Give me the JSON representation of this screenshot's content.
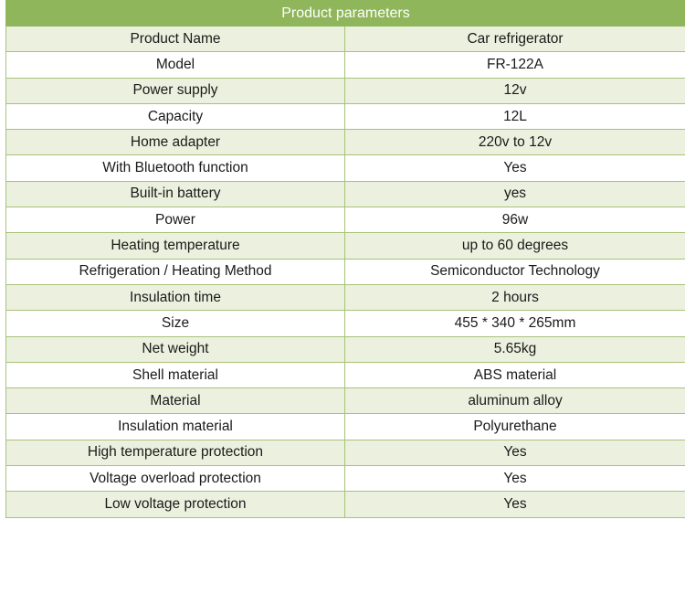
{
  "table": {
    "title": "Product parameters",
    "rows": [
      {
        "label": "Product Name",
        "value": "Car refrigerator"
      },
      {
        "label": "Model",
        "value": "FR-122A"
      },
      {
        "label": "Power supply",
        "value": "12v"
      },
      {
        "label": "Capacity",
        "value": "12L"
      },
      {
        "label": "Home adapter",
        "value": "220v to 12v"
      },
      {
        "label": "With Bluetooth function",
        "value": "Yes"
      },
      {
        "label": "Built-in battery",
        "value": "yes"
      },
      {
        "label": "Power",
        "value": "96w"
      },
      {
        "label": "Heating temperature",
        "value": "up to 60 degrees"
      },
      {
        "label": "Refrigeration / Heating Method",
        "value": "Semiconductor Technology"
      },
      {
        "label": "Insulation time",
        "value": "2 hours"
      },
      {
        "label": "Size",
        "value": "455 * 340 * 265mm"
      },
      {
        "label": "Net weight",
        "value": "5.65kg"
      },
      {
        "label": "Shell material",
        "value": "ABS material"
      },
      {
        "label": "Material",
        "value": "aluminum alloy"
      },
      {
        "label": "Insulation material",
        "value": "Polyurethane"
      },
      {
        "label": "High temperature protection",
        "value": "Yes"
      },
      {
        "label": "Voltage overload protection",
        "value": "Yes"
      },
      {
        "label": "Low voltage protection",
        "value": "Yes"
      }
    ]
  },
  "colors": {
    "header_bg": "#8fb65a",
    "header_text": "#ffffff",
    "row_alt_bg": "#ebf1de",
    "border": "#a8c27a"
  }
}
